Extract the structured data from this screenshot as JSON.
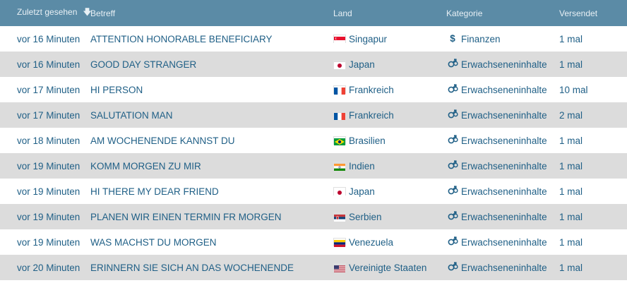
{
  "header": {
    "col_seen": "Zuletzt gesehen",
    "col_subject": "Betreff",
    "col_country": "Land",
    "col_category": "Kategorie",
    "col_sent": "Versendet",
    "sort_icon": "arrow-down-icon"
  },
  "rows": [
    {
      "seen": "vor 16 Minuten",
      "subject": "ATTENTION HONORABLE BENEFICIARY",
      "country": "Singapur",
      "flag": "singapore-flag",
      "category": "Finanzen",
      "category_icon": "dollar-icon",
      "sent": "1 mal"
    },
    {
      "seen": "vor 16 Minuten",
      "subject": "GOOD DAY STRANGER",
      "country": "Japan",
      "flag": "japan-flag",
      "category": "Erwachseneninhalte",
      "category_icon": "gender-icon",
      "sent": "1 mal"
    },
    {
      "seen": "vor 17 Minuten",
      "subject": "HI PERSON",
      "country": "Frankreich",
      "flag": "france-flag",
      "category": "Erwachseneninhalte",
      "category_icon": "gender-icon",
      "sent": "10 mal"
    },
    {
      "seen": "vor 17 Minuten",
      "subject": "SALUTATION MAN",
      "country": "Frankreich",
      "flag": "france-flag",
      "category": "Erwachseneninhalte",
      "category_icon": "gender-icon",
      "sent": "2 mal"
    },
    {
      "seen": "vor 18 Minuten",
      "subject": "AM WOCHENENDE KANNST DU",
      "country": "Brasilien",
      "flag": "brazil-flag",
      "category": "Erwachseneninhalte",
      "category_icon": "gender-icon",
      "sent": "1 mal"
    },
    {
      "seen": "vor 19 Minuten",
      "subject": "KOMM MORGEN ZU MIR",
      "country": "Indien",
      "flag": "india-flag",
      "category": "Erwachseneninhalte",
      "category_icon": "gender-icon",
      "sent": "1 mal"
    },
    {
      "seen": "vor 19 Minuten",
      "subject": "HI THERE MY DEAR FRIEND",
      "country": "Japan",
      "flag": "japan-flag",
      "category": "Erwachseneninhalte",
      "category_icon": "gender-icon",
      "sent": "1 mal"
    },
    {
      "seen": "vor 19 Minuten",
      "subject": "PLANEN WIR EINEN TERMIN FR MORGEN",
      "country": "Serbien",
      "flag": "serbia-flag",
      "category": "Erwachseneninhalte",
      "category_icon": "gender-icon",
      "sent": "1 mal"
    },
    {
      "seen": "vor 19 Minuten",
      "subject": "WAS MACHST DU MORGEN",
      "country": "Venezuela",
      "flag": "venezuela-flag",
      "category": "Erwachseneninhalte",
      "category_icon": "gender-icon",
      "sent": "1 mal"
    },
    {
      "seen": "vor 20 Minuten",
      "subject": "ERINNERN SIE SICH AN DAS WOCHENENDE",
      "country": "Vereinigte Staaten",
      "flag": "usa-flag",
      "category": "Erwachseneninhalte",
      "category_icon": "gender-icon",
      "sent": "1 mal"
    }
  ],
  "colors": {
    "header_bg": "#5b8ba6",
    "text": "#1f5f86",
    "row_alt": "#dcdcdc"
  }
}
